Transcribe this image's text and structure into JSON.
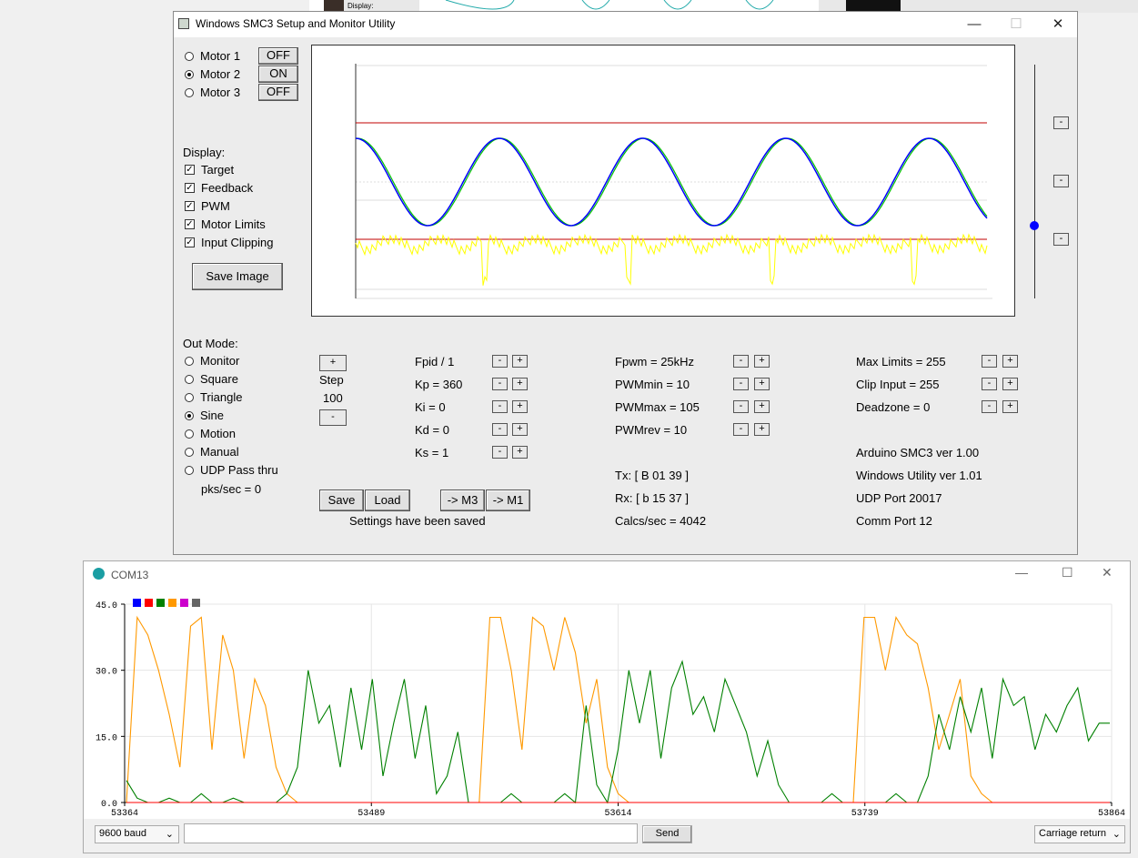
{
  "background": {
    "fragment_label": "Display:"
  },
  "main_window": {
    "title": "Windows SMC3 Setup and Monitor Utility",
    "controls": {
      "minimize": "—",
      "maximize": "☐",
      "close": "✕"
    },
    "motors": [
      {
        "label": "Motor 1",
        "state": "OFF",
        "selected": false
      },
      {
        "label": "Motor 2",
        "state": "ON",
        "selected": true
      },
      {
        "label": "Motor 3",
        "state": "OFF",
        "selected": false
      }
    ],
    "display": {
      "heading": "Display:",
      "options": [
        {
          "label": "Target",
          "checked": true
        },
        {
          "label": "Feedback",
          "checked": true
        },
        {
          "label": "PWM",
          "checked": true
        },
        {
          "label": "Motor Limits",
          "checked": true
        },
        {
          "label": "Input Clipping",
          "checked": true
        }
      ],
      "save_image": "Save Image"
    },
    "out_mode": {
      "heading": "Out Mode:",
      "options": [
        {
          "label": "Monitor",
          "selected": false
        },
        {
          "label": "Square",
          "selected": false
        },
        {
          "label": "Triangle",
          "selected": false
        },
        {
          "label": "Sine",
          "selected": true
        },
        {
          "label": "Motion",
          "selected": false
        },
        {
          "label": "Manual",
          "selected": false
        },
        {
          "label": "UDP Pass thru",
          "selected": false
        }
      ],
      "pks": "pks/sec = 0"
    },
    "step": {
      "plus": "+",
      "label": "Step",
      "value": "100",
      "minus": "-"
    },
    "pid": [
      "Fpid / 1",
      "Kp = 360",
      "Ki = 0",
      "Kd = 0",
      "Ks = 1"
    ],
    "pwm": [
      "Fpwm = 25kHz",
      "PWMmin = 10",
      "PWMmax = 105",
      "PWMrev = 10"
    ],
    "limits": [
      "Max Limits = 255",
      "Clip Input = 255",
      "Deadzone = 0"
    ],
    "status": {
      "tx": "Tx: [ B 01 39 ]",
      "rx": "Rx: [ b 15 37 ]",
      "calcs": "Calcs/sec = 4042"
    },
    "info": [
      "Arduino SMC3 ver 1.00",
      "Windows Utility ver 1.01",
      "UDP Port 20017",
      "Comm Port 12"
    ],
    "buttons": {
      "save": "Save",
      "load": "Load",
      "to_m3": "-> M3",
      "to_m1": "-> M1",
      "minus": "-",
      "plus": "+"
    },
    "saved_message": "Settings have been saved",
    "colors": {
      "target": "#0000ff",
      "feedback": "#00c000",
      "pwm": "#ffff00",
      "limits": "#c00000"
    }
  },
  "serial_plotter": {
    "title": "COM13",
    "controls": {
      "minimize": "—",
      "maximize": "☐",
      "close": "✕"
    },
    "y_ticks": [
      "45.0",
      "30.0",
      "15.0",
      "0.0"
    ],
    "x_ticks": [
      "53364",
      "53489",
      "53614",
      "53739",
      "53864"
    ],
    "legend_colors": [
      "#0000ff",
      "#ff0000",
      "#008000",
      "#ff9900",
      "#cc00cc",
      "#666666"
    ],
    "baud": "9600 baud",
    "send": "Send",
    "line_ending": "Carriage return"
  },
  "chart_data": {
    "type": "line",
    "x_range": [
      53364,
      53864
    ],
    "ylim": [
      0,
      45
    ],
    "grid": true,
    "series": [
      {
        "color": "#ff9900",
        "values": [
          0,
          42,
          38,
          30,
          20,
          8,
          40,
          42,
          12,
          38,
          30,
          10,
          28,
          22,
          8,
          2,
          0,
          0,
          0,
          0,
          0,
          0,
          0,
          0,
          0,
          0,
          0,
          0,
          0,
          0,
          0,
          0,
          0,
          0,
          42,
          42,
          30,
          12,
          42,
          40,
          30,
          42,
          34,
          18,
          28,
          8,
          2,
          0,
          0,
          0,
          0,
          0,
          0,
          0,
          0,
          0,
          0,
          0,
          0,
          0,
          0,
          0,
          0,
          0,
          0,
          0,
          0,
          0,
          0,
          42,
          42,
          30,
          42,
          38,
          36,
          26,
          12,
          20,
          28,
          6,
          2,
          0,
          0,
          0,
          0,
          0,
          0,
          0,
          0,
          0,
          0,
          0,
          0
        ]
      },
      {
        "color": "#008000",
        "values": [
          5,
          1,
          0,
          0,
          1,
          0,
          0,
          2,
          0,
          0,
          1,
          0,
          0,
          0,
          0,
          2,
          8,
          30,
          18,
          22,
          8,
          26,
          12,
          28,
          6,
          18,
          28,
          10,
          22,
          2,
          6,
          16,
          0,
          0,
          0,
          0,
          2,
          0,
          0,
          0,
          0,
          2,
          0,
          22,
          4,
          0,
          12,
          30,
          18,
          30,
          10,
          26,
          32,
          20,
          24,
          16,
          28,
          22,
          16,
          6,
          14,
          4,
          0,
          0,
          0,
          0,
          2,
          0,
          0,
          0,
          0,
          0,
          2,
          0,
          0,
          6,
          20,
          12,
          24,
          16,
          26,
          10,
          28,
          22,
          24,
          12,
          20,
          16,
          22,
          26,
          14,
          18,
          18
        ]
      },
      {
        "color": "#ff0000",
        "values": [
          0,
          0,
          0,
          0,
          0,
          0,
          0,
          0,
          0,
          0,
          0,
          0,
          0,
          0,
          0,
          0,
          0,
          0,
          0,
          0,
          0,
          0,
          0,
          0,
          0,
          0,
          0,
          0,
          0,
          0,
          0,
          0,
          0,
          0,
          0,
          0,
          0,
          0,
          0,
          0,
          0,
          0,
          0,
          0,
          0,
          0,
          0,
          0,
          0,
          0,
          0,
          0,
          0,
          0,
          0,
          0,
          0,
          0,
          0,
          0,
          0,
          0,
          0,
          0,
          0,
          0,
          0,
          0,
          0,
          0,
          0,
          0,
          0,
          0,
          0,
          0,
          0,
          0,
          0,
          0,
          0,
          0,
          0,
          0,
          0,
          0,
          0,
          0,
          0,
          0,
          0,
          0,
          0
        ]
      }
    ]
  }
}
